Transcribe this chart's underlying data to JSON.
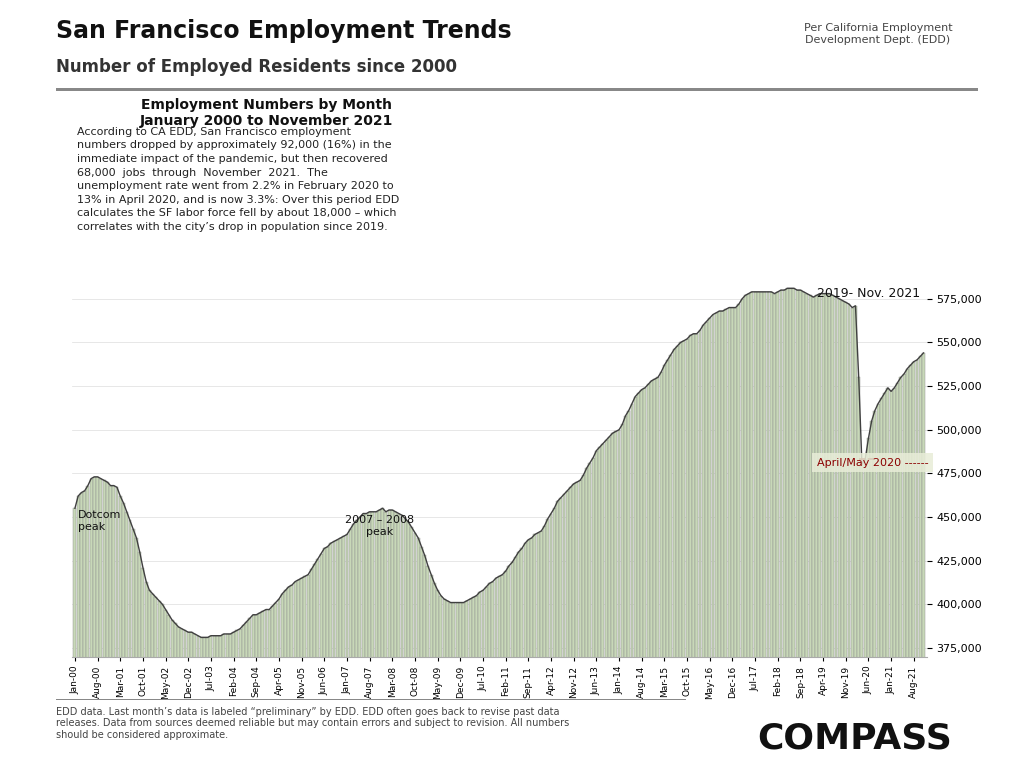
{
  "title": "San Francisco Employment Trends",
  "subtitle": "Number of Employed Residents since 2000",
  "source_note": "Per California Employment\nDevelopment Dept. (EDD)",
  "chart_title_line1": "Employment Numbers by Month",
  "chart_title_line2": "January 2000 to November 2021",
  "annotation_text": "According to CA EDD, San Francisco employment\nnumbers dropped by approximately 92,000 (16%) in the\nimmediate impact of the pandemic, but then recovered\n68,000  jobs  through  November  2021.  The\nunemployment rate went from 2.2% in February 2020 to\n13% in April 2020, and is now 3.3%: Over this period EDD\ncalculates the SF labor force fell by about 18,000 – which\ncorrelates with the city’s drop in population since 2019.",
  "dotcom_label": "Dotcom\npeak",
  "peak2007_label": "2007 – 2008\npeak",
  "peak2019_label": "2019- Nov. 2021",
  "april_may_label": "April/May 2020 ------",
  "footer_text": "EDD data. Last month’s data is labeled “preliminary” by EDD. EDD often goes back to revise past data\nreleases. Data from sources deemed reliable but may contain errors and subject to revision. All numbers\nshould be considered approximate.",
  "compass_text": "COMPASS",
  "bar_color": "#c8d8b8",
  "bar_edge_color": "#888888",
  "line_color": "#404040",
  "background_color": "#ffffff",
  "separator_color": "#888888",
  "april_box_color": "#e8edd8",
  "april_text_color": "#8b0000",
  "annotation_box_bg": "#f0f4e8",
  "ylim_low": 370000,
  "ylim_high": 590000,
  "yticks": [
    375000,
    400000,
    425000,
    450000,
    475000,
    500000,
    525000,
    550000,
    575000
  ],
  "months": [
    "Jan-00",
    "Feb-00",
    "Mar-00",
    "Apr-00",
    "May-00",
    "Jun-00",
    "Jul-00",
    "Aug-00",
    "Sep-00",
    "Oct-00",
    "Nov-00",
    "Dec-00",
    "Jan-01",
    "Feb-01",
    "Mar-01",
    "Apr-01",
    "May-01",
    "Jun-01",
    "Jul-01",
    "Aug-01",
    "Sep-01",
    "Oct-01",
    "Nov-01",
    "Dec-01",
    "Jan-02",
    "Feb-02",
    "Mar-02",
    "Apr-02",
    "May-02",
    "Jun-02",
    "Jul-02",
    "Aug-02",
    "Sep-02",
    "Oct-02",
    "Nov-02",
    "Dec-02",
    "Jan-03",
    "Feb-03",
    "Mar-03",
    "Apr-03",
    "May-03",
    "Jun-03",
    "Jul-03",
    "Aug-03",
    "Sep-03",
    "Oct-03",
    "Nov-03",
    "Dec-03",
    "Jan-04",
    "Feb-04",
    "Mar-04",
    "Apr-04",
    "May-04",
    "Jun-04",
    "Jul-04",
    "Aug-04",
    "Sep-04",
    "Oct-04",
    "Nov-04",
    "Dec-04",
    "Jan-05",
    "Feb-05",
    "Mar-05",
    "Apr-05",
    "May-05",
    "Jun-05",
    "Jul-05",
    "Aug-05",
    "Sep-05",
    "Oct-05",
    "Nov-05",
    "Dec-05",
    "Jan-06",
    "Feb-06",
    "Mar-06",
    "Apr-06",
    "May-06",
    "Jun-06",
    "Jul-06",
    "Aug-06",
    "Sep-06",
    "Oct-06",
    "Nov-06",
    "Dec-06",
    "Jan-07",
    "Feb-07",
    "Mar-07",
    "Apr-07",
    "May-07",
    "Jun-07",
    "Jul-07",
    "Aug-07",
    "Sep-07",
    "Oct-07",
    "Nov-07",
    "Dec-07",
    "Jan-08",
    "Feb-08",
    "Mar-08",
    "Apr-08",
    "May-08",
    "Jun-08",
    "Jul-08",
    "Aug-08",
    "Sep-08",
    "Oct-08",
    "Nov-08",
    "Dec-08",
    "Jan-09",
    "Feb-09",
    "Mar-09",
    "Apr-09",
    "May-09",
    "Jun-09",
    "Jul-09",
    "Aug-09",
    "Sep-09",
    "Oct-09",
    "Nov-09",
    "Dec-09",
    "Jan-10",
    "Feb-10",
    "Mar-10",
    "Apr-10",
    "May-10",
    "Jun-10",
    "Jul-10",
    "Aug-10",
    "Sep-10",
    "Oct-10",
    "Nov-10",
    "Dec-10",
    "Jan-11",
    "Feb-11",
    "Mar-11",
    "Apr-11",
    "May-11",
    "Jun-11",
    "Jul-11",
    "Aug-11",
    "Sep-11",
    "Oct-11",
    "Nov-11",
    "Dec-11",
    "Jan-12",
    "Feb-12",
    "Mar-12",
    "Apr-12",
    "May-12",
    "Jun-12",
    "Jul-12",
    "Aug-12",
    "Sep-12",
    "Oct-12",
    "Nov-12",
    "Dec-12",
    "Jan-13",
    "Feb-13",
    "Mar-13",
    "Apr-13",
    "May-13",
    "Jun-13",
    "Jul-13",
    "Aug-13",
    "Sep-13",
    "Oct-13",
    "Nov-13",
    "Dec-13",
    "Jan-14",
    "Feb-14",
    "Mar-14",
    "Apr-14",
    "May-14",
    "Jun-14",
    "Jul-14",
    "Aug-14",
    "Sep-14",
    "Oct-14",
    "Nov-14",
    "Dec-14",
    "Jan-15",
    "Feb-15",
    "Mar-15",
    "Apr-15",
    "May-15",
    "Jun-15",
    "Jul-15",
    "Aug-15",
    "Sep-15",
    "Oct-15",
    "Nov-15",
    "Dec-15",
    "Jan-16",
    "Feb-16",
    "Mar-16",
    "Apr-16",
    "May-16",
    "Jun-16",
    "Jul-16",
    "Aug-16",
    "Sep-16",
    "Oct-16",
    "Nov-16",
    "Dec-16",
    "Jan-17",
    "Feb-17",
    "Mar-17",
    "Apr-17",
    "May-17",
    "Jun-17",
    "Jul-17",
    "Aug-17",
    "Sep-17",
    "Oct-17",
    "Nov-17",
    "Dec-17",
    "Jan-18",
    "Feb-18",
    "Mar-18",
    "Apr-18",
    "May-18",
    "Jun-18",
    "Jul-18",
    "Aug-18",
    "Sep-18",
    "Oct-18",
    "Nov-18",
    "Dec-18",
    "Jan-19",
    "Feb-19",
    "Mar-19",
    "Apr-19",
    "May-19",
    "Jun-19",
    "Jul-19",
    "Aug-19",
    "Sep-19",
    "Oct-19",
    "Nov-19",
    "Dec-19",
    "Jan-20",
    "Feb-20",
    "Mar-20",
    "Apr-20",
    "May-20",
    "Jun-20",
    "Jul-20",
    "Aug-20",
    "Sep-20",
    "Oct-20",
    "Nov-20",
    "Dec-20",
    "Jan-21",
    "Feb-21",
    "Mar-21",
    "Apr-21",
    "May-21",
    "Jun-21",
    "Jul-21",
    "Aug-21",
    "Sep-21",
    "Oct-21",
    "Nov-21"
  ],
  "values": [
    455000,
    462000,
    464000,
    465000,
    468000,
    472000,
    473000,
    473000,
    472000,
    471000,
    470000,
    468000,
    468000,
    467000,
    462000,
    458000,
    453000,
    448000,
    443000,
    438000,
    430000,
    421000,
    413000,
    408000,
    406000,
    404000,
    402000,
    400000,
    397000,
    394000,
    391000,
    389000,
    387000,
    386000,
    385000,
    384000,
    384000,
    383000,
    382000,
    381000,
    381000,
    381000,
    382000,
    382000,
    382000,
    382000,
    383000,
    383000,
    383000,
    384000,
    385000,
    386000,
    388000,
    390000,
    392000,
    394000,
    394000,
    395000,
    396000,
    397000,
    397000,
    399000,
    401000,
    403000,
    406000,
    408000,
    410000,
    411000,
    413000,
    414000,
    415000,
    416000,
    417000,
    420000,
    423000,
    426000,
    429000,
    432000,
    433000,
    435000,
    436000,
    437000,
    438000,
    439000,
    440000,
    443000,
    446000,
    448000,
    450000,
    452000,
    452000,
    453000,
    453000,
    453000,
    454000,
    455000,
    453000,
    454000,
    454000,
    453000,
    452000,
    451000,
    449000,
    447000,
    444000,
    441000,
    438000,
    433000,
    428000,
    422000,
    417000,
    412000,
    408000,
    405000,
    403000,
    402000,
    401000,
    401000,
    401000,
    401000,
    401000,
    402000,
    403000,
    404000,
    405000,
    407000,
    408000,
    410000,
    412000,
    413000,
    415000,
    416000,
    417000,
    419000,
    422000,
    424000,
    427000,
    430000,
    432000,
    435000,
    437000,
    438000,
    440000,
    441000,
    442000,
    445000,
    449000,
    452000,
    455000,
    459000,
    461000,
    463000,
    465000,
    467000,
    469000,
    470000,
    471000,
    474000,
    478000,
    481000,
    484000,
    488000,
    490000,
    492000,
    494000,
    496000,
    498000,
    499000,
    500000,
    503000,
    508000,
    511000,
    515000,
    519000,
    521000,
    523000,
    524000,
    526000,
    528000,
    529000,
    530000,
    533000,
    537000,
    540000,
    543000,
    546000,
    548000,
    550000,
    551000,
    552000,
    554000,
    555000,
    555000,
    557000,
    560000,
    562000,
    564000,
    566000,
    567000,
    568000,
    568000,
    569000,
    570000,
    570000,
    570000,
    572000,
    575000,
    577000,
    578000,
    579000,
    579000,
    579000,
    579000,
    579000,
    579000,
    579000,
    578000,
    579000,
    580000,
    580000,
    581000,
    581000,
    581000,
    580000,
    580000,
    579000,
    578000,
    577000,
    576000,
    577000,
    578000,
    578000,
    578000,
    578000,
    577000,
    576000,
    575000,
    574000,
    573000,
    572000,
    570000,
    571000,
    530000,
    480000,
    483000,
    495000,
    505000,
    511000,
    515000,
    518000,
    521000,
    524000,
    522000,
    524000,
    527000,
    530000,
    532000,
    535000,
    537000,
    539000,
    540000,
    542000,
    544000
  ],
  "xtick_labels": [
    "Jan-00",
    "Aug-00",
    "Mar-01",
    "Oct-01",
    "May-02",
    "Dec-02",
    "Jul-03",
    "Feb-04",
    "Sep-04",
    "Apr-05",
    "Nov-05",
    "Jun-06",
    "Jan-07",
    "Aug-07",
    "Mar-08",
    "Oct-08",
    "May-09",
    "Dec-09",
    "Jul-10",
    "Feb-11",
    "Sep-11",
    "Apr-12",
    "Nov-12",
    "Jun-13",
    "Jan-14",
    "Aug-14",
    "Mar-15",
    "Oct-15",
    "May-16",
    "Dec-16",
    "Jul-17",
    "Feb-18",
    "Sep-18",
    "Apr-19",
    "Nov-19",
    "Jun-20",
    "Jan-21",
    "Aug-21"
  ]
}
